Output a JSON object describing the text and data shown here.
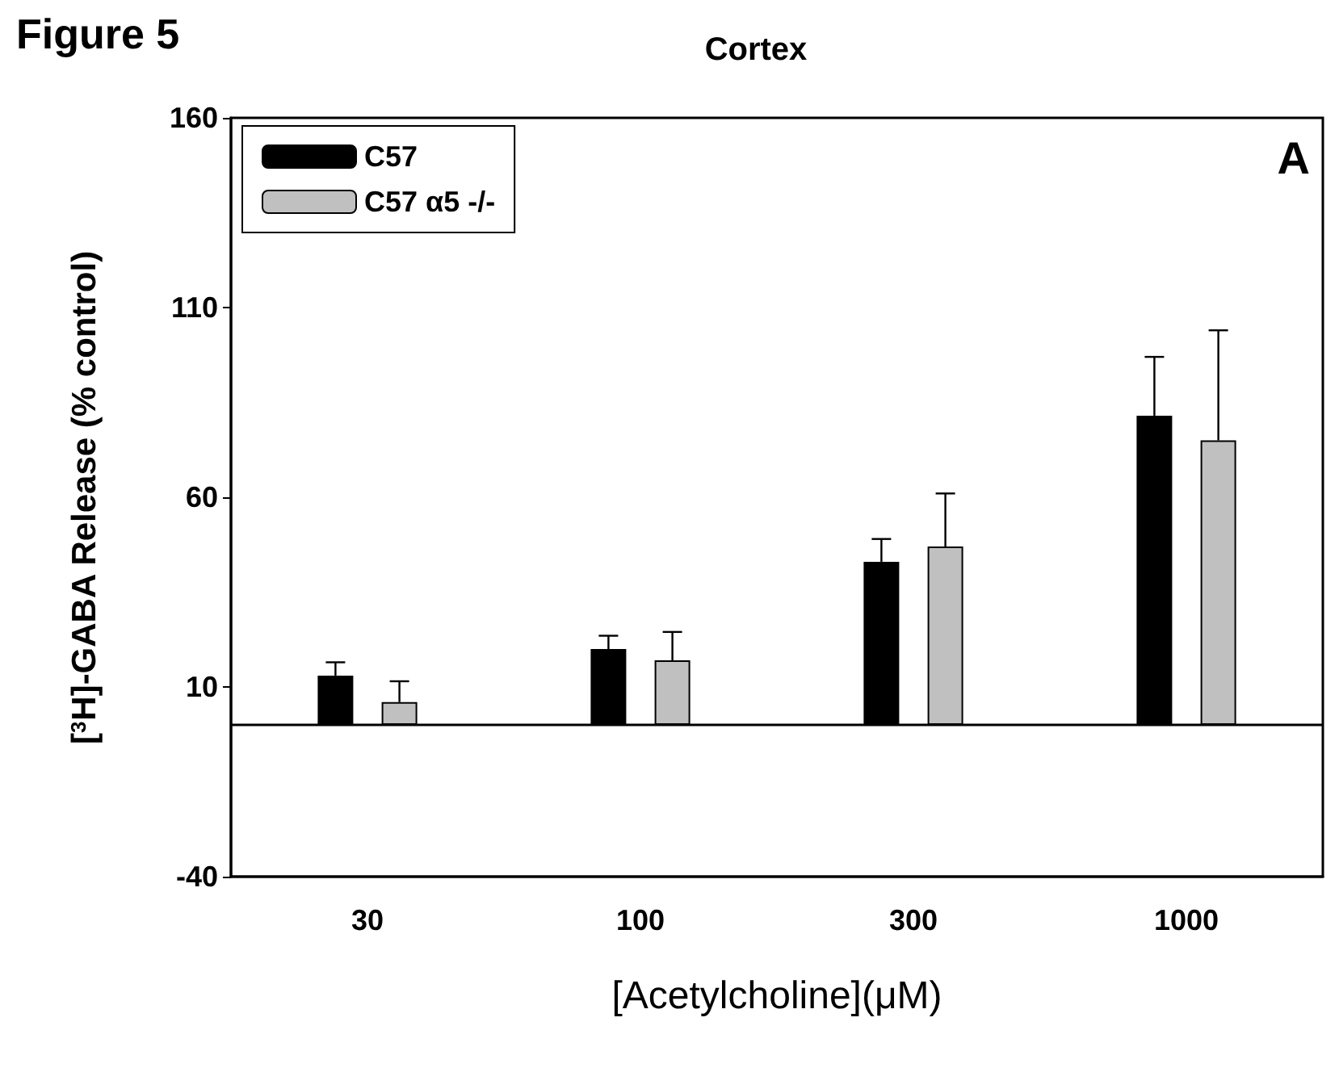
{
  "chart_data": {
    "type": "bar",
    "title": "Cortex",
    "xlabel": "[Acetylcholine](μM)",
    "ylabel": "[$^{3}$H]-GABA Release (% control)",
    "annotations": [
      "Figure 5",
      "A"
    ],
    "categories": [
      "30",
      "100",
      "300",
      "1000"
    ],
    "series": [
      {
        "name": "C57",
        "color": "#000000",
        "values": [
          13,
          20,
          43,
          81.5
        ],
        "errors": [
          [
            13,
            16.5
          ],
          [
            20,
            23.5
          ],
          [
            43,
            49
          ],
          [
            81.5,
            97
          ]
        ]
      },
      {
        "name": "C57 α5 -/-",
        "color": "#c0c0c0",
        "values": [
          6,
          17,
          47,
          75
        ],
        "errors": [
          [
            6,
            11.5
          ],
          [
            17,
            24.5
          ],
          [
            47,
            61
          ],
          [
            75,
            104
          ]
        ]
      }
    ],
    "ylim": [
      -40,
      160
    ],
    "yticks": [
      -40,
      10,
      60,
      110,
      160
    ],
    "ref_lines": [
      {
        "axis": "y",
        "value": 0,
        "color": "#000000",
        "line_style": "solid"
      }
    ],
    "grid": false,
    "legend": "top left"
  }
}
